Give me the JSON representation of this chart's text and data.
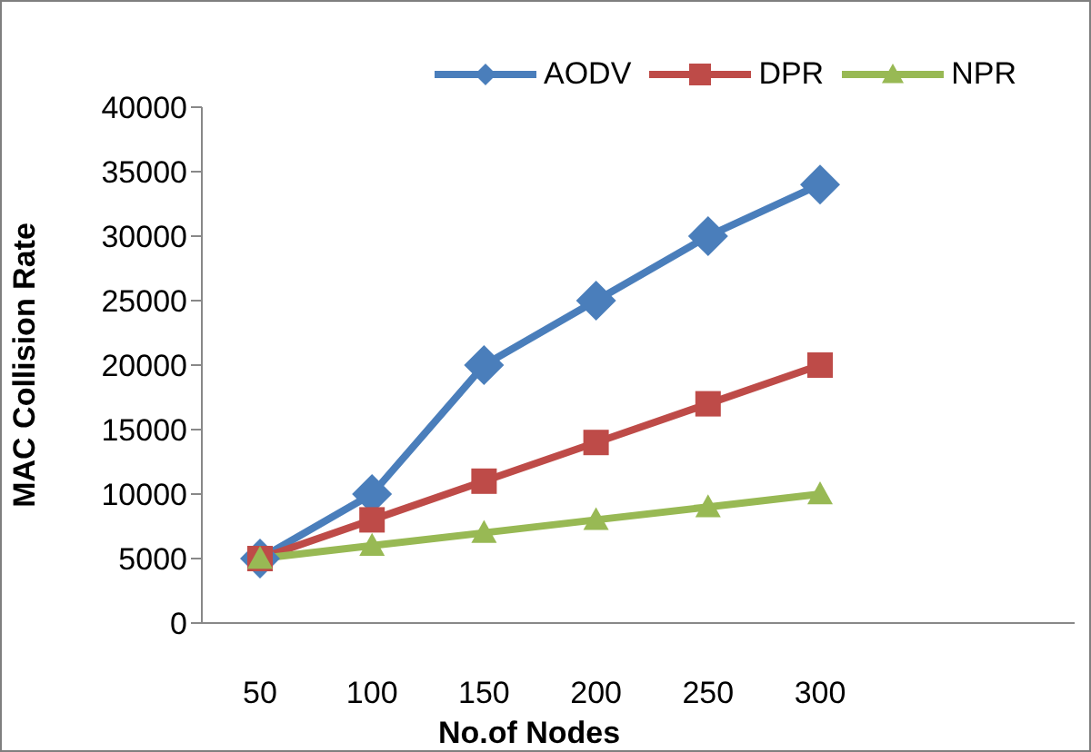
{
  "chart_data": {
    "type": "line",
    "xlabel": "No.of Nodes",
    "ylabel": "MAC Collision Rate",
    "categories": [
      "50",
      "100",
      "150",
      "200",
      "250",
      "300"
    ],
    "series": [
      {
        "name": "AODV",
        "color": "#4a7ebb",
        "marker": "diamond",
        "values": [
          5000,
          10000,
          20000,
          25000,
          30000,
          34000
        ]
      },
      {
        "name": "DPR",
        "color": "#be4b48",
        "marker": "square",
        "values": [
          5000,
          8000,
          11000,
          14000,
          17000,
          20000
        ]
      },
      {
        "name": "NPR",
        "color": "#98b954",
        "marker": "triangle",
        "values": [
          5000,
          6000,
          7000,
          8000,
          9000,
          10000
        ]
      }
    ],
    "ylim": [
      0,
      40000
    ],
    "yticks": [
      0,
      5000,
      10000,
      15000,
      20000,
      25000,
      30000,
      35000,
      40000
    ],
    "grid": false,
    "legend": "top right",
    "line_style": "solid"
  }
}
